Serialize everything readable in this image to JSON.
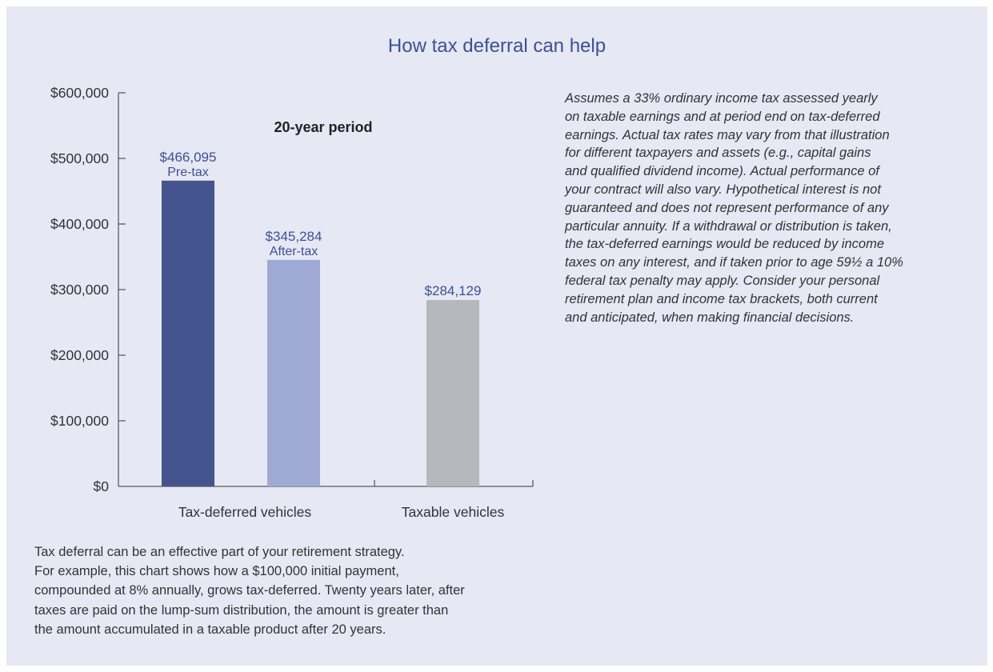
{
  "title": "How tax deferral can help",
  "chart_data": {
    "type": "bar",
    "subtitle": "20-year period",
    "ylim": [
      0,
      600000
    ],
    "yticks": [
      0,
      100000,
      200000,
      300000,
      400000,
      500000,
      600000
    ],
    "yticklabels": [
      "$0",
      "$100,000",
      "$200,000",
      "$300,000",
      "$400,000",
      "$500,000",
      "$600,000"
    ],
    "groups": [
      "Tax-deferred vehicles",
      "Taxable vehicles"
    ],
    "bars": [
      {
        "group": "Tax-deferred vehicles",
        "value": 466095,
        "label": "$466,095",
        "sublabel": "Pre-tax",
        "color": "#44548f"
      },
      {
        "group": "Tax-deferred vehicles",
        "value": 345284,
        "label": "$345,284",
        "sublabel": "After-tax",
        "color": "#9ea9d4"
      },
      {
        "group": "Taxable vehicles",
        "value": 284129,
        "label": "$284,129",
        "sublabel": "",
        "color": "#b6b8bd"
      }
    ],
    "label_color": "#3b4f9c",
    "grid": false
  },
  "note_lines": [
    "Assumes a 33% ordinary income tax assessed yearly",
    "on taxable earnings and at period end on tax-deferred",
    "earnings. Actual tax rates may vary from that illustration",
    "for different taxpayers and assets (e.g., capital gains",
    "and qualified dividend income). Actual performance of",
    "your contract will also vary. Hypothetical interest is not",
    "guaranteed and does not represent performance of any",
    "particular annuity. If a withdrawal or distribution is taken,",
    "the tax-deferred earnings would be reduced by income",
    "taxes on any interest, and if taken prior to age 59½ a 10%",
    "federal tax penalty may apply. Consider your personal",
    "retirement plan and income tax brackets, both current",
    "and anticipated, when making financial decisions."
  ],
  "caption_lines": [
    "Tax deferral can be an effective part of your retirement strategy.",
    "For example, this chart shows how a $100,000 initial payment,",
    "compounded at 8% annually, grows tax-deferred. Twenty years later, after",
    "taxes are paid on the lump-sum distribution, the amount is greater than",
    "the amount accumulated in a taxable product after 20 years."
  ]
}
